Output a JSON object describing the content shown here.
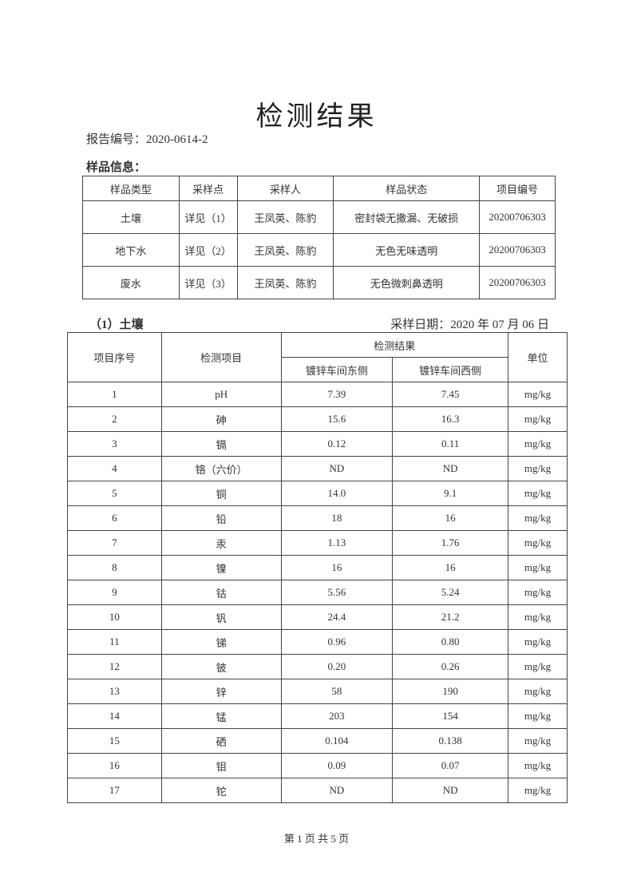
{
  "title": "检测结果",
  "report_no": "报告编号：2020-0614-2",
  "sample_info_label": "样品信息：",
  "sample_table": {
    "headers": [
      "样品类型",
      "采样点",
      "采样人",
      "样品状态",
      "项目编号"
    ],
    "rows": [
      [
        "土壤",
        "详见（1）",
        "王凤英、陈豹",
        "密封袋无撒漏、无破损",
        "20200706303"
      ],
      [
        "地下水",
        "详见（2）",
        "王凤英、陈豹",
        "无色无味透明",
        "20200706303"
      ],
      [
        "废水",
        "详见（3）",
        "王凤英、陈豹",
        "无色微刺鼻透明",
        "20200706303"
      ]
    ]
  },
  "section": {
    "label": "（1）土壤",
    "date": "采样日期：2020 年 07 月 06 日"
  },
  "main_table": {
    "headers": {
      "no": "项目序号",
      "item": "检测项目",
      "results": "检测结果",
      "east": "镀锌车间东侧",
      "west": "镀锌车间西侧",
      "unit": "单位"
    },
    "rows": [
      [
        "1",
        "pH",
        "7.39",
        "7.45",
        "mg/kg"
      ],
      [
        "2",
        "砷",
        "15.6",
        "16.3",
        "mg/kg"
      ],
      [
        "3",
        "镉",
        "0.12",
        "0.11",
        "mg/kg"
      ],
      [
        "4",
        "铬（六价）",
        "ND",
        "ND",
        "mg/kg"
      ],
      [
        "5",
        "铜",
        "14.0",
        "9.1",
        "mg/kg"
      ],
      [
        "6",
        "铅",
        "18",
        "16",
        "mg/kg"
      ],
      [
        "7",
        "汞",
        "1.13",
        "1.76",
        "mg/kg"
      ],
      [
        "8",
        "镍",
        "16",
        "16",
        "mg/kg"
      ],
      [
        "9",
        "钴",
        "5.56",
        "5.24",
        "mg/kg"
      ],
      [
        "10",
        "钒",
        "24.4",
        "21.2",
        "mg/kg"
      ],
      [
        "11",
        "锑",
        "0.96",
        "0.80",
        "mg/kg"
      ],
      [
        "12",
        "铍",
        "0.20",
        "0.26",
        "mg/kg"
      ],
      [
        "13",
        "锌",
        "58",
        "190",
        "mg/kg"
      ],
      [
        "14",
        "锰",
        "203",
        "154",
        "mg/kg"
      ],
      [
        "15",
        "硒",
        "0.104",
        "0.138",
        "mg/kg"
      ],
      [
        "16",
        "钼",
        "0.09",
        "0.07",
        "mg/kg"
      ],
      [
        "17",
        "铊",
        "ND",
        "ND",
        "mg/kg"
      ]
    ]
  },
  "footer": "第 1 页   共 5 页"
}
